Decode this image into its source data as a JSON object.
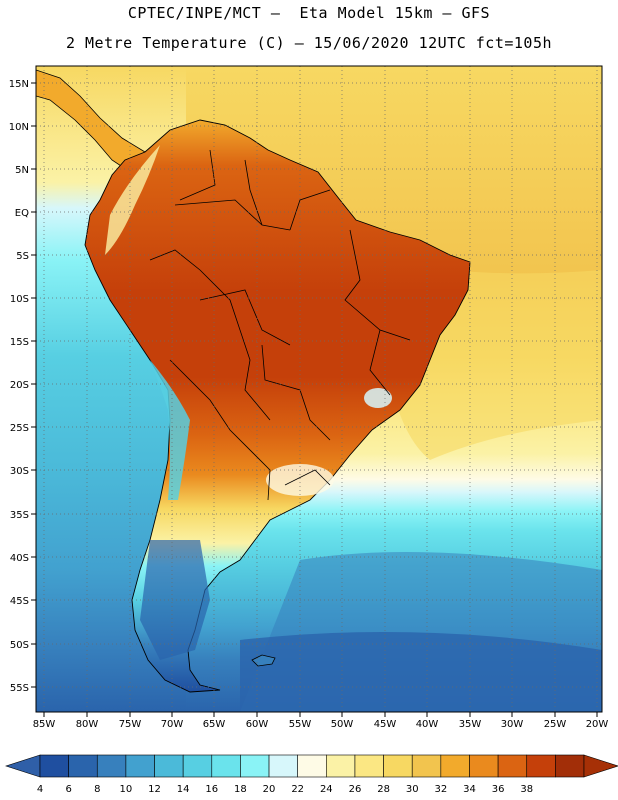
{
  "header": {
    "line1": "CPTEC/INPE/MCT –  Eta Model 15km – GFS",
    "line2": "2 Metre Temperature (C) – 15/06/2020 12UTC fct=105h"
  },
  "axes": {
    "lat_labels": [
      "15N",
      "10N",
      "5N",
      "EQ",
      "5S",
      "10S",
      "15S",
      "20S",
      "25S",
      "30S",
      "35S",
      "40S",
      "45S",
      "50S",
      "55S"
    ],
    "lon_labels": [
      "85W",
      "80W",
      "75W",
      "70W",
      "65W",
      "60W",
      "55W",
      "50W",
      "45W",
      "40W",
      "35W",
      "30W",
      "25W",
      "20W"
    ]
  },
  "colorbar": {
    "ticks": [
      "4",
      "6",
      "8",
      "10",
      "12",
      "14",
      "16",
      "18",
      "20",
      "22",
      "24",
      "26",
      "28",
      "30",
      "32",
      "34",
      "36",
      "38"
    ],
    "colors": [
      "#1f4fa0",
      "#2a64ac",
      "#3780bd",
      "#42a1cf",
      "#4bbad9",
      "#57cfe2",
      "#6ae3ec",
      "#8af3f6",
      "#d7f7fb",
      "#fefbe6",
      "#fbf2a6",
      "#fbe783",
      "#f7d862",
      "#f2c44e",
      "#f2aa2c",
      "#ea8a1e",
      "#db6412",
      "#c5400a",
      "#a22e08"
    ],
    "left_arrow_color": "#2f5fa8",
    "right_arrow_color": "#a63006"
  }
}
